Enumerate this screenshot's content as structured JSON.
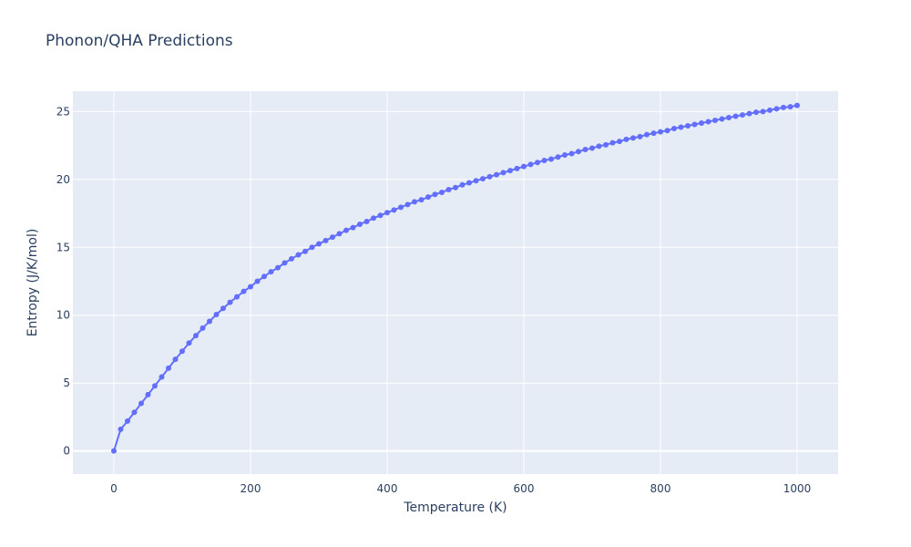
{
  "chart_data": {
    "type": "line",
    "title": "Phonon/QHA Predictions",
    "xlabel": "Temperature (K)",
    "ylabel": "Entropy (J/K/mol)",
    "xlim": [
      -60,
      1060
    ],
    "ylim": [
      -1.7,
      26.5
    ],
    "x_ticks": [
      0,
      200,
      400,
      600,
      800,
      1000
    ],
    "y_ticks": [
      0,
      5,
      10,
      15,
      20,
      25
    ],
    "grid": true,
    "legend": "none",
    "series": [
      {
        "color": "#636efa",
        "x": [
          0,
          10,
          20,
          30,
          40,
          50,
          60,
          70,
          80,
          90,
          100,
          110,
          120,
          130,
          140,
          150,
          160,
          170,
          180,
          190,
          200,
          210,
          220,
          230,
          240,
          250,
          260,
          270,
          280,
          290,
          300,
          310,
          320,
          330,
          340,
          350,
          360,
          370,
          380,
          390,
          400,
          410,
          420,
          430,
          440,
          450,
          460,
          470,
          480,
          490,
          500,
          510,
          520,
          530,
          540,
          550,
          560,
          570,
          580,
          590,
          600,
          610,
          620,
          630,
          640,
          650,
          660,
          670,
          680,
          690,
          700,
          710,
          720,
          730,
          740,
          750,
          760,
          770,
          780,
          790,
          800,
          810,
          820,
          830,
          840,
          850,
          860,
          870,
          880,
          890,
          900,
          910,
          920,
          930,
          940,
          950,
          960,
          970,
          980,
          990,
          1000
        ],
        "y": [
          0,
          1.6,
          2.2,
          2.85,
          3.5,
          4.15,
          4.8,
          5.45,
          6.1,
          6.75,
          7.35,
          7.95,
          8.5,
          9.05,
          9.55,
          10.05,
          10.5,
          10.95,
          11.35,
          11.75,
          12.1,
          12.5,
          12.85,
          13.2,
          13.5,
          13.85,
          14.15,
          14.45,
          14.7,
          15.0,
          15.25,
          15.5,
          15.75,
          16.0,
          16.25,
          16.45,
          16.7,
          16.9,
          17.15,
          17.35,
          17.55,
          17.75,
          17.95,
          18.15,
          18.35,
          18.5,
          18.7,
          18.9,
          19.05,
          19.25,
          19.4,
          19.6,
          19.75,
          19.9,
          20.05,
          20.2,
          20.35,
          20.5,
          20.65,
          20.8,
          20.95,
          21.1,
          21.25,
          21.4,
          21.5,
          21.65,
          21.8,
          21.9,
          22.05,
          22.2,
          22.3,
          22.45,
          22.55,
          22.7,
          22.8,
          22.95,
          23.05,
          23.15,
          23.3,
          23.4,
          23.5,
          23.6,
          23.75,
          23.85,
          23.95,
          24.05,
          24.15,
          24.25,
          24.35,
          24.45,
          24.55,
          24.65,
          24.75,
          24.85,
          24.95,
          25.0,
          25.1,
          25.2,
          25.3,
          25.35,
          25.45
        ]
      }
    ]
  }
}
